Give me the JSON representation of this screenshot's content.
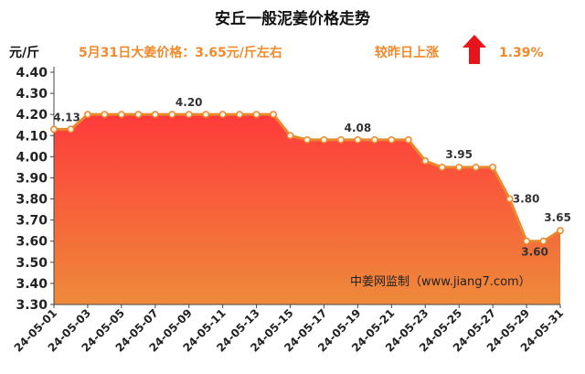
{
  "header": {
    "title": "安丘一般泥姜价格走势",
    "unit": "元/斤",
    "price_text": "5月31日大姜价格：3.65元/斤左右",
    "change_text": "较昨日上涨",
    "change_pct": "1.39%",
    "arrow_icon": "up-arrow-icon"
  },
  "watermark": "中姜网监制（www.jiang7.com）",
  "colors": {
    "title": "#111111",
    "header_orange": "#f08a2b",
    "arrow_red": "#e8141b",
    "line": "#e8892e",
    "fill_top": "#ff3b3b",
    "fill_bottom": "#ee8a3a"
  },
  "chart_data": {
    "type": "area",
    "title": "安丘一般泥姜价格走势",
    "ylabel": "元/斤",
    "ylim": [
      3.3,
      4.4
    ],
    "yticks": [
      "3.30",
      "3.40",
      "3.50",
      "3.60",
      "3.70",
      "3.80",
      "3.90",
      "4.00",
      "4.10",
      "4.20",
      "4.30",
      "4.40"
    ],
    "grid": false,
    "x": [
      "24-05-01",
      "24-05-02",
      "24-05-03",
      "24-05-04",
      "24-05-05",
      "24-05-06",
      "24-05-07",
      "24-05-08",
      "24-05-09",
      "24-05-10",
      "24-05-11",
      "24-05-12",
      "24-05-13",
      "24-05-14",
      "24-05-15",
      "24-05-16",
      "24-05-17",
      "24-05-18",
      "24-05-19",
      "24-05-20",
      "24-05-21",
      "24-05-22",
      "24-05-23",
      "24-05-24",
      "24-05-25",
      "24-05-26",
      "24-05-27",
      "24-05-28",
      "24-05-29",
      "24-05-30",
      "24-05-31"
    ],
    "xtick_labels": [
      "24-05-01",
      "24-05-03",
      "24-05-05",
      "24-05-07",
      "24-05-09",
      "24-05-11",
      "24-05-13",
      "24-05-15",
      "24-05-17",
      "24-05-19",
      "24-05-21",
      "24-05-23",
      "24-05-25",
      "24-05-27",
      "24-05-29",
      "24-05-31"
    ],
    "values": [
      4.13,
      4.13,
      4.2,
      4.2,
      4.2,
      4.2,
      4.2,
      4.2,
      4.2,
      4.2,
      4.2,
      4.2,
      4.2,
      4.2,
      4.1,
      4.08,
      4.08,
      4.08,
      4.08,
      4.08,
      4.08,
      4.08,
      3.98,
      3.95,
      3.95,
      3.95,
      3.95,
      3.8,
      3.6,
      3.6,
      3.65
    ],
    "annotations": [
      {
        "index": 0,
        "text": "4.13"
      },
      {
        "index": 8,
        "text": "4.20"
      },
      {
        "index": 18,
        "text": "4.08"
      },
      {
        "index": 24,
        "text": "3.95"
      },
      {
        "index": 27,
        "text": "3.80"
      },
      {
        "index": 28,
        "text": "3.60"
      },
      {
        "index": 30,
        "text": "3.65"
      }
    ]
  }
}
